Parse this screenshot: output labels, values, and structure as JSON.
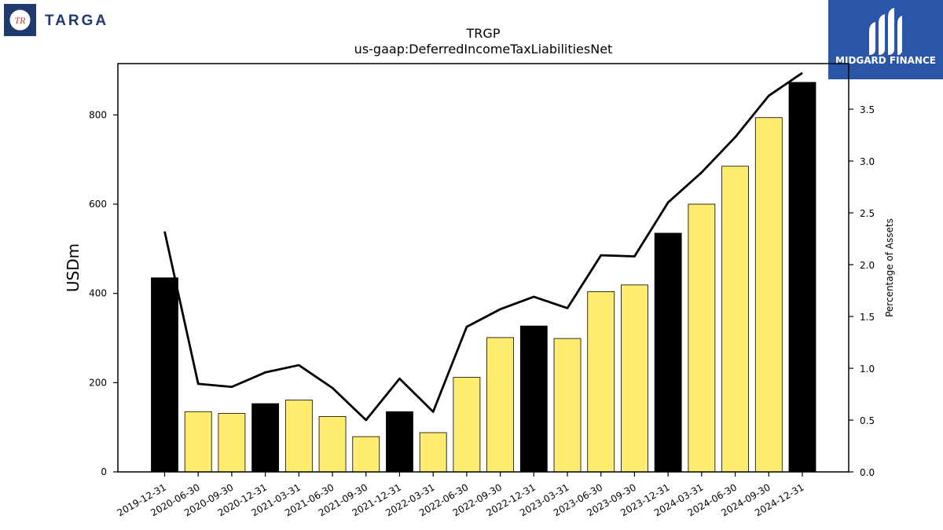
{
  "header": {
    "company_logo_text": "TARGA",
    "company_logo_mark": "TR",
    "sponsor_logo_text": "MIDGARD FINANCE"
  },
  "colors": {
    "annual_bar": "#000000",
    "quarter_bar": "#ffeb6e",
    "line": "#000000",
    "brand_navy": "#1f3a6e",
    "brand_blue": "#2b56a8"
  },
  "chart_data": {
    "type": "bar",
    "title": "TRGP",
    "subtitle": "us-gaap:DeferredIncomeTaxLiabilitiesNet",
    "ylabel": "USDm",
    "y2label": "Percentage of Assets",
    "ylim": [
      0,
      915
    ],
    "y2lim": [
      0,
      3.94
    ],
    "yticks": [
      0,
      200,
      400,
      600,
      800
    ],
    "y2ticks": [
      "0.0",
      "0.5",
      "1.0",
      "1.5",
      "2.0",
      "2.5",
      "3.0",
      "3.5"
    ],
    "categories": [
      "2019-12-31",
      "2020-06-30",
      "2020-09-30",
      "2020-12-31",
      "2021-03-31",
      "2021-06-30",
      "2021-09-30",
      "2021-12-31",
      "2022-03-31",
      "2022-06-30",
      "2022-09-30",
      "2022-12-31",
      "2023-03-31",
      "2023-06-30",
      "2023-09-30",
      "2023-12-31",
      "2024-03-31",
      "2024-06-30",
      "2024-09-30",
      "2024-12-31"
    ],
    "series": [
      {
        "name": "",
        "type": "bar",
        "values": [
          435,
          135,
          131,
          153,
          161,
          124,
          79,
          135,
          88,
          212,
          301,
          327,
          299,
          404,
          419,
          535,
          600,
          685,
          794,
          873
        ],
        "annual": [
          true,
          false,
          false,
          true,
          false,
          false,
          false,
          true,
          false,
          false,
          false,
          true,
          false,
          false,
          false,
          true,
          false,
          false,
          false,
          true
        ]
      },
      {
        "name": "",
        "type": "line",
        "axis": "right",
        "values": [
          2.32,
          0.85,
          0.82,
          0.96,
          1.03,
          0.81,
          0.5,
          0.9,
          0.58,
          1.4,
          1.57,
          1.69,
          1.58,
          2.09,
          2.08,
          2.6,
          2.89,
          3.23,
          3.63,
          3.85
        ]
      }
    ],
    "grid": false,
    "legend": "none"
  }
}
